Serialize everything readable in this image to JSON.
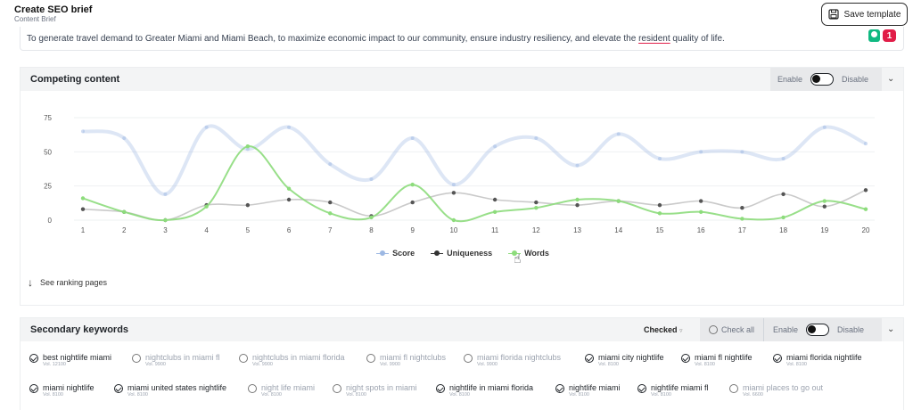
{
  "header": {
    "title": "Create SEO brief",
    "subtitle": "Content Brief",
    "save_label": "Save template"
  },
  "goal": {
    "text_before": "To generate travel demand to Greater Miami and Miami Beach, to maximize economic impact to our community, ensure industry resiliency, and elevate the ",
    "text_underlined": "resident",
    "text_after": " quality of life.",
    "issue_count": "1"
  },
  "competing": {
    "title": "Competing content",
    "enable_label": "Enable",
    "disable_label": "Disable",
    "see_ranking_label": "See ranking pages"
  },
  "chart_data": {
    "type": "line",
    "x": [
      1,
      2,
      3,
      4,
      5,
      6,
      7,
      8,
      9,
      10,
      11,
      12,
      13,
      14,
      15,
      16,
      17,
      18,
      19,
      20
    ],
    "ylim": [
      0,
      75
    ],
    "yticks": [
      "0",
      "25",
      "50",
      "75"
    ],
    "grid": true,
    "legend_position": "bottom-center",
    "series": [
      {
        "name": "Score",
        "color": "#9db8e3",
        "values": [
          65,
          60,
          19,
          68,
          52,
          68,
          41,
          30,
          60,
          26,
          54,
          60,
          40,
          63,
          45,
          50,
          50,
          45,
          68,
          56
        ]
      },
      {
        "name": "Uniqueness",
        "color": "#c4c4c4",
        "marker": "#555555",
        "values": [
          8,
          6,
          0,
          11,
          11,
          15,
          13,
          3,
          13,
          20,
          15,
          13,
          11,
          14,
          11,
          14,
          9,
          19,
          10,
          22
        ]
      },
      {
        "name": "Words",
        "color": "#8ddc7c",
        "values": [
          16,
          6,
          0,
          10,
          54,
          23,
          5,
          2,
          26,
          0,
          6,
          9,
          15,
          14,
          5,
          6,
          1,
          2,
          14,
          8
        ]
      }
    ]
  },
  "secondary": {
    "title": "Secondary keywords",
    "checked_label": "Checked",
    "check_all_label": "Check all",
    "enable_label": "Enable",
    "disable_label": "Disable",
    "rows": [
      [
        {
          "name": "best nightlife miami",
          "vol": "Vol. 12100",
          "checked": true
        },
        {
          "name": "nightclubs in miami fl",
          "vol": "Vol. 9900",
          "checked": false
        },
        {
          "name": "nightclubs in miami florida",
          "vol": "Vol. 9900",
          "checked": false
        },
        {
          "name": "miami fl nightclubs",
          "vol": "Vol. 9900",
          "checked": false
        },
        {
          "name": "miami florida nightclubs",
          "vol": "Vol. 9900",
          "checked": false
        },
        {
          "name": "miami city nightlife",
          "vol": "Vol. 8100",
          "checked": true
        },
        {
          "name": "miami fl nightlife",
          "vol": "Vol. 8100",
          "checked": true
        },
        {
          "name": "miami florida nightlife",
          "vol": "Vol. 8100",
          "checked": true
        }
      ],
      [
        {
          "name": "miami nightlife",
          "vol": "Vol. 8100",
          "checked": true
        },
        {
          "name": "miami united states nightlife",
          "vol": "Vol. 8100",
          "checked": true
        },
        {
          "name": "night life miami",
          "vol": "Vol. 8100",
          "checked": false
        },
        {
          "name": "night spots in miami",
          "vol": "Vol. 8100",
          "checked": false
        },
        {
          "name": "nightlife in miami florida",
          "vol": "Vol. 8100",
          "checked": true
        },
        {
          "name": "nightlife miami",
          "vol": "Vol. 8100",
          "checked": true
        },
        {
          "name": "nightlife miami fl",
          "vol": "Vol. 8100",
          "checked": true
        },
        {
          "name": "miami places to go out",
          "vol": "Vol. 6600",
          "checked": false
        }
      ]
    ]
  }
}
